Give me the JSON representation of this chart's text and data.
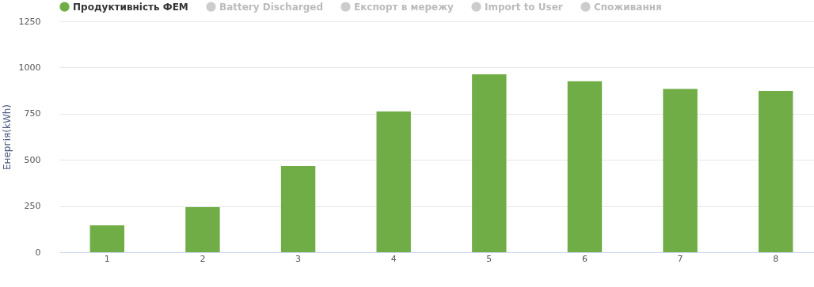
{
  "chart_data": {
    "type": "bar",
    "ylabel": "Енергія(kWh)",
    "categories": [
      "1",
      "2",
      "3",
      "4",
      "5",
      "6",
      "7",
      "8"
    ],
    "series": [
      {
        "name": "Продуктивність ФЕМ",
        "color": "#70ad47",
        "values": [
          146,
          244,
          467,
          762,
          963,
          926,
          884,
          873
        ]
      },
      {
        "name": "Battery Discharged",
        "color": "#cccccc",
        "values": [
          null,
          null,
          null,
          null,
          null,
          null,
          null,
          null
        ]
      },
      {
        "name": "Експорт в мережу",
        "color": "#cccccc",
        "values": [
          null,
          null,
          null,
          null,
          null,
          null,
          null,
          null
        ]
      },
      {
        "name": "Import to User",
        "color": "#cccccc",
        "values": [
          null,
          null,
          null,
          null,
          null,
          null,
          null,
          null
        ]
      },
      {
        "name": "Споживання",
        "color": "#cccccc",
        "values": [
          null,
          null,
          null,
          null,
          null,
          null,
          null,
          null
        ]
      }
    ],
    "ylim": [
      0,
      1250
    ],
    "yticks": [
      0,
      250,
      500,
      750,
      1000,
      1250
    ],
    "grid": "y",
    "legend": "top left"
  }
}
